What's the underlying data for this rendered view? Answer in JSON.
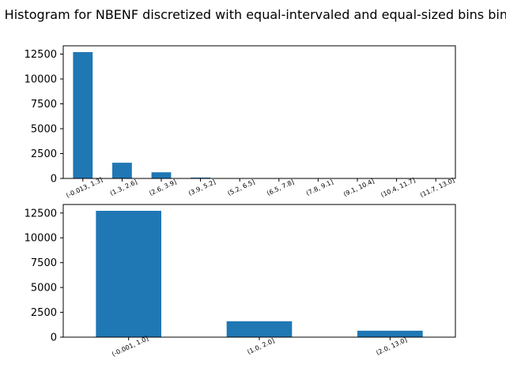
{
  "title": "Histogram for NBENF discretized with equal-intervaled and equal-sized bins bins",
  "chart_data": [
    {
      "type": "bar",
      "categories": [
        "(-0.013, 1.3]",
        "(1.3, 2.6]",
        "(2.6, 3.9]",
        "(3.9, 5.2]",
        "(5.2, 6.5]",
        "(6.5, 7.8]",
        "(7.8, 9.1]",
        "(9.1, 10.4]",
        "(10.4, 11.7]",
        "(11.7, 13.0]"
      ],
      "values": [
        12700,
        1580,
        620,
        90,
        15,
        5,
        3,
        2,
        1,
        1
      ],
      "ylim": [
        0,
        13335
      ],
      "yticks": [
        0,
        2500,
        5000,
        7500,
        10000,
        12500
      ],
      "ytick_labels": [
        "0",
        "2500",
        "5000",
        "7500",
        "10000",
        "12500"
      ],
      "color": "#1f77b4",
      "grid": false,
      "x_tick_rotation": 25
    },
    {
      "type": "bar",
      "categories": [
        "(-0.001, 1.0]",
        "(1.0, 2.0]",
        "(2.0, 13.0]"
      ],
      "values": [
        12720,
        1600,
        650
      ],
      "ylim": [
        0,
        13356
      ],
      "yticks": [
        0,
        2500,
        5000,
        7500,
        10000,
        12500
      ],
      "ytick_labels": [
        "0",
        "2500",
        "5000",
        "7500",
        "10000",
        "12500"
      ],
      "color": "#1f77b4",
      "grid": false,
      "x_tick_rotation": 25
    }
  ]
}
